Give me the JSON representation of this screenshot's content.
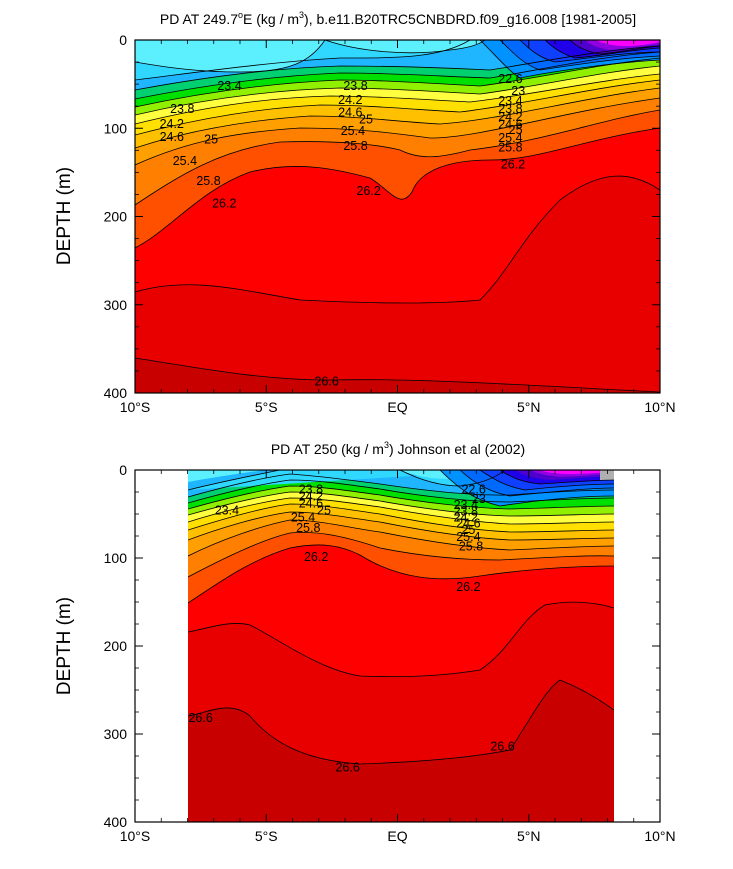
{
  "chart_data": [
    {
      "type": "contour",
      "title_prefix": "PD AT 249.7",
      "title_sup_deg": "o",
      "title_mid1": "E (kg / m",
      "title_sup3": "3",
      "title_suffix": "), b.e11.B20TRC5CNBDRD.f09_g16.008 [1981-2005]",
      "ylabel": "DEPTH (m)",
      "xlim": [
        -10,
        10
      ],
      "ylim": [
        400,
        0
      ],
      "x_ticks": [
        {
          "value": -10,
          "label": "10°S"
        },
        {
          "value": -5,
          "label": "5°S"
        },
        {
          "value": 0,
          "label": "EQ"
        },
        {
          "value": 5,
          "label": "5°N"
        },
        {
          "value": 10,
          "label": "10°N"
        }
      ],
      "y_ticks": [
        {
          "value": 0,
          "label": "0"
        },
        {
          "value": 100,
          "label": "100"
        },
        {
          "value": 200,
          "label": "200"
        },
        {
          "value": 300,
          "label": "300"
        },
        {
          "value": 400,
          "label": "400"
        }
      ],
      "data_x_range": [
        -10,
        10
      ],
      "contour_labels": [
        {
          "text": "23.4",
          "x": -6.4,
          "y": 52
        },
        {
          "text": "23.8",
          "x": -8.2,
          "y": 78
        },
        {
          "text": "24.2",
          "x": -8.6,
          "y": 95
        },
        {
          "text": "24.6",
          "x": -8.6,
          "y": 110
        },
        {
          "text": "25",
          "x": -7.1,
          "y": 113
        },
        {
          "text": "25.4",
          "x": -8.1,
          "y": 137
        },
        {
          "text": "25.8",
          "x": -7.2,
          "y": 160
        },
        {
          "text": "26.2",
          "x": -6.6,
          "y": 185
        },
        {
          "text": "23.8",
          "x": -1.6,
          "y": 52
        },
        {
          "text": "24.2",
          "x": -1.8,
          "y": 68
        },
        {
          "text": "24.6",
          "x": -1.8,
          "y": 82
        },
        {
          "text": "25",
          "x": -1.2,
          "y": 90
        },
        {
          "text": "25.4",
          "x": -1.7,
          "y": 103
        },
        {
          "text": "25.8",
          "x": -1.6,
          "y": 120
        },
        {
          "text": "26.2",
          "x": -1.1,
          "y": 171
        },
        {
          "text": "22.6",
          "x": 4.3,
          "y": 44
        },
        {
          "text": "23",
          "x": 4.6,
          "y": 58
        },
        {
          "text": "23.4",
          "x": 4.3,
          "y": 69
        },
        {
          "text": "23.8",
          "x": 4.3,
          "y": 78
        },
        {
          "text": "24.2",
          "x": 4.3,
          "y": 87
        },
        {
          "text": "24.6",
          "x": 4.3,
          "y": 96
        },
        {
          "text": "25",
          "x": 4.5,
          "y": 102
        },
        {
          "text": "25.4",
          "x": 4.3,
          "y": 111
        },
        {
          "text": "25.8",
          "x": 4.3,
          "y": 122
        },
        {
          "text": "26.2",
          "x": 4.4,
          "y": 141
        },
        {
          "text": "26.6",
          "x": -2.7,
          "y": 387
        }
      ]
    },
    {
      "type": "contour",
      "title_prefix": "PD AT 250 (kg / m",
      "title_sup3": "3",
      "title_suffix": ") Johnson et al (2002)",
      "ylabel": "DEPTH (m)",
      "xlim": [
        -10,
        10
      ],
      "ylim": [
        400,
        0
      ],
      "x_ticks": [
        {
          "value": -10,
          "label": "10°S"
        },
        {
          "value": -5,
          "label": "5°S"
        },
        {
          "value": 0,
          "label": "EQ"
        },
        {
          "value": 5,
          "label": "5°N"
        },
        {
          "value": 10,
          "label": "10°N"
        }
      ],
      "y_ticks": [
        {
          "value": 0,
          "label": "0"
        },
        {
          "value": 100,
          "label": "100"
        },
        {
          "value": 200,
          "label": "200"
        },
        {
          "value": 300,
          "label": "300"
        },
        {
          "value": 400,
          "label": "400"
        }
      ],
      "data_x_range": [
        -8,
        8.2
      ],
      "contour_labels": [
        {
          "text": "23.4",
          "x": -6.5,
          "y": 46
        },
        {
          "text": "23.8",
          "x": -3.3,
          "y": 22
        },
        {
          "text": "24.2",
          "x": -3.3,
          "y": 30
        },
        {
          "text": "24.6",
          "x": -3.3,
          "y": 38
        },
        {
          "text": "25",
          "x": -2.8,
          "y": 46
        },
        {
          "text": "25.4",
          "x": -3.6,
          "y": 54
        },
        {
          "text": "25.8",
          "x": -3.4,
          "y": 66
        },
        {
          "text": "26.2",
          "x": -3.1,
          "y": 99
        },
        {
          "text": "22.6",
          "x": 2.9,
          "y": 22
        },
        {
          "text": "23",
          "x": 3.1,
          "y": 33
        },
        {
          "text": "23.4",
          "x": 2.6,
          "y": 40
        },
        {
          "text": "23.8",
          "x": 2.6,
          "y": 47
        },
        {
          "text": "24.2",
          "x": 2.6,
          "y": 54
        },
        {
          "text": "24.6",
          "x": 2.7,
          "y": 61
        },
        {
          "text": "25",
          "x": 2.7,
          "y": 68
        },
        {
          "text": "25.4",
          "x": 2.7,
          "y": 76
        },
        {
          "text": "25.8",
          "x": 2.8,
          "y": 87
        },
        {
          "text": "26.2",
          "x": 2.7,
          "y": 133
        },
        {
          "text": "26.6",
          "x": -7.5,
          "y": 282
        },
        {
          "text": "26.6",
          "x": -1.9,
          "y": 338
        },
        {
          "text": "26.6",
          "x": 4.0,
          "y": 314
        }
      ]
    }
  ],
  "colors": {
    "levels": [
      "#5cf0ff",
      "#30d8ff",
      "#1fb6ff",
      "#0092ff",
      "#006aff",
      "#1040ff",
      "#2000e8",
      "#5000cc",
      "#9000e0",
      "#c000f0",
      "#ff00ff"
    ],
    "density": [
      "#00d070",
      "#00e000",
      "#90f000",
      "#ffff40",
      "#ffe000",
      "#ffc000",
      "#ffa000",
      "#ff8000",
      "#ff5000",
      "#ff0000",
      "#e00000",
      "#c80000"
    ]
  }
}
